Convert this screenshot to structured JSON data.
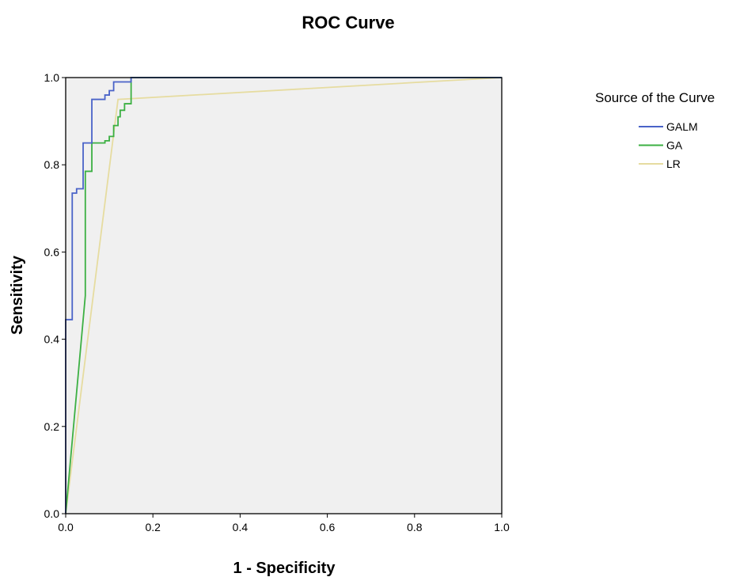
{
  "chart_data": {
    "type": "line",
    "title": "ROC Curve",
    "xlabel": "1 - Specificity",
    "ylabel": "Sensitivity",
    "xlim": [
      0.0,
      1.0
    ],
    "ylim": [
      0.0,
      1.0
    ],
    "x_ticks": [
      "0.0",
      "0.2",
      "0.4",
      "0.6",
      "0.8",
      "1.0"
    ],
    "y_ticks": [
      "0.0",
      "0.2",
      "0.4",
      "0.6",
      "0.8",
      "1.0"
    ],
    "grid": false,
    "plot_background": "#f0f0f0",
    "legend": {
      "title": "Source of the Curve",
      "placement": "right"
    },
    "series": [
      {
        "name": "GALM",
        "color": "#4a63c8",
        "points": [
          [
            0.0,
            0.0
          ],
          [
            0.0,
            0.445
          ],
          [
            0.015,
            0.445
          ],
          [
            0.015,
            0.735
          ],
          [
            0.025,
            0.735
          ],
          [
            0.025,
            0.745
          ],
          [
            0.04,
            0.745
          ],
          [
            0.04,
            0.85
          ],
          [
            0.06,
            0.85
          ],
          [
            0.06,
            0.95
          ],
          [
            0.09,
            0.95
          ],
          [
            0.09,
            0.96
          ],
          [
            0.1,
            0.96
          ],
          [
            0.1,
            0.97
          ],
          [
            0.11,
            0.97
          ],
          [
            0.11,
            0.99
          ],
          [
            0.15,
            0.99
          ],
          [
            0.15,
            1.0
          ],
          [
            1.0,
            1.0
          ]
        ]
      },
      {
        "name": "GA",
        "color": "#3cb043",
        "points": [
          [
            0.0,
            0.0
          ],
          [
            0.045,
            0.5
          ],
          [
            0.045,
            0.785
          ],
          [
            0.06,
            0.785
          ],
          [
            0.06,
            0.85
          ],
          [
            0.09,
            0.85
          ],
          [
            0.09,
            0.855
          ],
          [
            0.1,
            0.855
          ],
          [
            0.1,
            0.865
          ],
          [
            0.11,
            0.865
          ],
          [
            0.11,
            0.89
          ],
          [
            0.12,
            0.89
          ],
          [
            0.12,
            0.91
          ],
          [
            0.125,
            0.91
          ],
          [
            0.125,
            0.925
          ],
          [
            0.135,
            0.925
          ],
          [
            0.135,
            0.94
          ],
          [
            0.15,
            0.94
          ],
          [
            0.15,
            1.0
          ],
          [
            1.0,
            1.0
          ]
        ]
      },
      {
        "name": "LR",
        "color": "#e6dca0",
        "points": [
          [
            0.0,
            0.0
          ],
          [
            0.12,
            0.95
          ],
          [
            1.0,
            1.0
          ]
        ]
      }
    ]
  }
}
